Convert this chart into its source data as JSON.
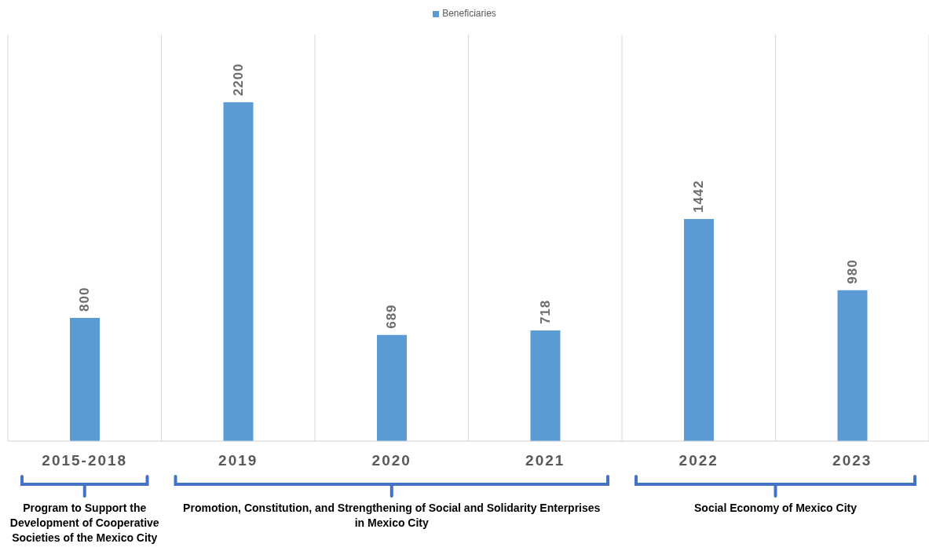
{
  "chart_data": {
    "type": "bar",
    "categories": [
      "2015-2018",
      "2019",
      "2020",
      "2021",
      "2022",
      "2023"
    ],
    "series": [
      {
        "name": "Beneficiaries",
        "color": "#5b9bd5",
        "values": [
          800,
          2200,
          689,
          718,
          1442,
          980
        ]
      }
    ],
    "data_labels": true,
    "grid": "x",
    "legend": "top",
    "annotations": [
      "Program to Support the Development of Cooperative Societies of the Mexico City",
      "Promotion, Constitution, and Strengthening of Social and Solidarity Enterprises in Mexico City",
      "Social Economy of Mexico City"
    ]
  }
}
